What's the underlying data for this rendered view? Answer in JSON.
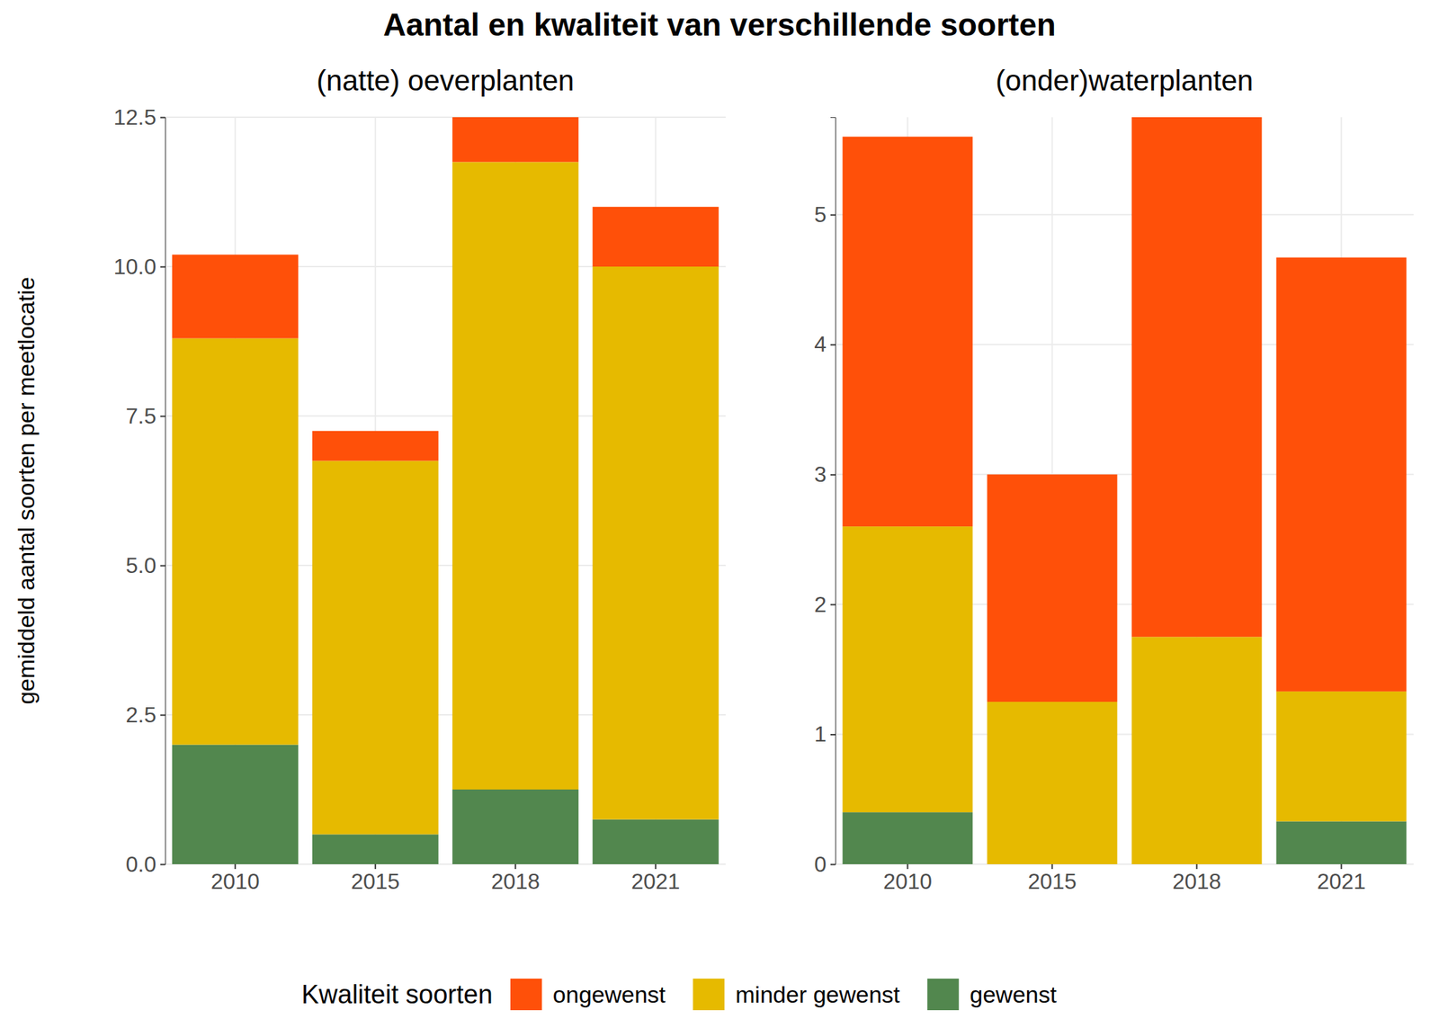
{
  "chart_data": {
    "type": "bar",
    "stacked": true,
    "grid": true,
    "legend": "bottom",
    "title": "Aantal en kwaliteit van verschillende soorten",
    "y_label": "gemiddeld aantal soorten per meetlocatie",
    "legend_title": "Kwaliteit soorten",
    "panels": [
      {
        "subtitle": "(natte) oeverplanten",
        "categories": [
          "2010",
          "2015",
          "2018",
          "2021"
        ],
        "ylim": [
          0,
          12.5
        ],
        "yticks": [
          {
            "value": 0,
            "label": "0.0"
          },
          2.5,
          {
            "value": 5,
            "label": "5.0"
          },
          7.5,
          {
            "value": 10,
            "label": "10.0"
          },
          12.5
        ],
        "series": [
          {
            "name": "gewenst",
            "color": "#52874e",
            "values": [
              2.0,
              0.5,
              1.25,
              0.75
            ]
          },
          {
            "name": "minder gewenst",
            "color": "#e6ba00",
            "values": [
              6.8,
              6.25,
              10.5,
              9.25
            ]
          },
          {
            "name": "ongewenst",
            "color": "#ff5009",
            "values": [
              1.4,
              0.5,
              0.75,
              1.0
            ]
          }
        ]
      },
      {
        "subtitle": "(onder)waterplanten",
        "categories": [
          "2010",
          "2015",
          "2018",
          "2021"
        ],
        "ylim": [
          0,
          5.75
        ],
        "yticks": [
          0,
          1,
          2,
          3,
          4,
          5
        ],
        "series": [
          {
            "name": "gewenst",
            "color": "#52874e",
            "values": [
              0.4,
              0,
              0,
              0.33
            ]
          },
          {
            "name": "minder gewenst",
            "color": "#e6ba00",
            "values": [
              2.2,
              1.25,
              1.75,
              1.0
            ]
          },
          {
            "name": "ongewenst",
            "color": "#ff5009",
            "values": [
              3.0,
              1.75,
              4.0,
              3.34
            ]
          }
        ]
      }
    ]
  }
}
